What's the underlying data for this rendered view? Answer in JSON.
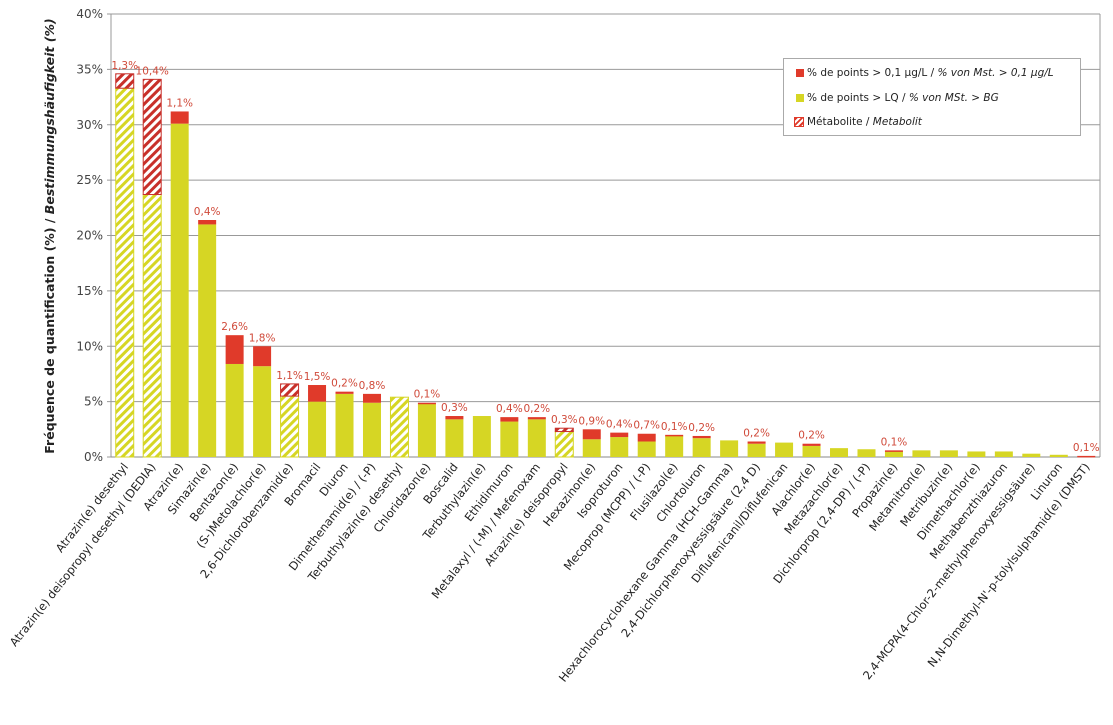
{
  "colors": {
    "red": "#e03a2a",
    "yellow": "#d6d624",
    "label": "#d04a3a"
  },
  "legend": {
    "red_fr": "% de points > 0,1 µg/L / ",
    "red_de": "% von Mst. > 0,1 µg/L",
    "yellow_fr": "% de points > LQ / ",
    "yellow_de": "% von MSt. > BG",
    "metabolite_fr": "Métabolite / ",
    "metabolite_de": "Metabolit"
  },
  "chart_data": {
    "type": "bar",
    "stacked": true,
    "ylabel_fr": "Fréquence de quantification (%) / ",
    "ylabel_de": "Bestimmungshäufigkeit (%)",
    "ylim": [
      0,
      40
    ],
    "yticks": [
      "0%",
      "5%",
      "10%",
      "15%",
      "20%",
      "25%",
      "30%",
      "35%",
      "40%"
    ],
    "grid": true,
    "legend_position": "top-right",
    "categories": [
      "Atrazin(e) desethyl",
      "Atrazin(e) deisopropyl desethyl (DEDIA)",
      "Atrazin(e)",
      "Simazin(e)",
      "Bentazon(e)",
      "(S-)Metolachlor(e)",
      "2,6-Dichlorobenzamid(e)",
      "Bromacil",
      "Diuron",
      "Dimethenamid(e) / (-P)",
      "Terbuthylazin(e) desethyl",
      "Chloridazon(e)",
      "Boscalid",
      "Terbuthylazin(e)",
      "Ethidimuron",
      "Metalaxyl / (-M) / Mefenoxam",
      "Atrazin(e) deisopropyl",
      "Hexazinon(e)",
      "Isoproturon",
      "Mecoprop (MCPP) / (-P)",
      "Flusilazol(e)",
      "Chlortoluron",
      "Hexachlorocyclohexane Gamma (HCH-Gamma)",
      "2,4-Dichlorphenoxyessigsäure (2,4 D)",
      "Diflufenicanil/Diflufenican",
      "Alachlor(e)",
      "Metazachlor(e)",
      "Dichlorprop (2,4-DP) / (-P)",
      "Propazin(e)",
      "Metamitron(e)",
      "Metribuzin(e)",
      "Dimethachlor(e)",
      "Methabenzthiazuron",
      "2,4-MCPA(4-Chlor-2-methylphenoxyessigsäure)",
      "Linuron",
      "N,N-Dimethyl-N'-p-tolylsulphamid(e) (DMST)"
    ],
    "metabolite": [
      true,
      true,
      false,
      false,
      false,
      false,
      true,
      false,
      false,
      false,
      true,
      false,
      false,
      false,
      false,
      false,
      true,
      false,
      false,
      false,
      false,
      false,
      false,
      false,
      false,
      false,
      false,
      false,
      false,
      false,
      false,
      false,
      false,
      false,
      false,
      false
    ],
    "series": [
      {
        "name": "% de points > LQ",
        "values": [
          33.3,
          23.7,
          30.1,
          21.0,
          8.4,
          8.2,
          5.5,
          5.0,
          5.7,
          4.9,
          5.4,
          4.8,
          3.4,
          3.7,
          3.2,
          3.4,
          2.3,
          1.6,
          1.8,
          1.4,
          1.9,
          1.7,
          1.5,
          1.2,
          1.3,
          1.0,
          0.8,
          0.7,
          0.5,
          0.6,
          0.6,
          0.5,
          0.5,
          0.3,
          0.2,
          0.0
        ]
      },
      {
        "name": "% de points > 0,1 µg/L",
        "values": [
          1.3,
          10.4,
          1.1,
          0.4,
          2.6,
          1.8,
          1.1,
          1.5,
          0.2,
          0.8,
          0,
          0.1,
          0.3,
          0,
          0.4,
          0.2,
          0.3,
          0.9,
          0.4,
          0.7,
          0.1,
          0.2,
          0,
          0.2,
          0,
          0.2,
          0,
          0,
          0.1,
          0,
          0,
          0,
          0,
          0,
          0,
          0.1
        ]
      }
    ],
    "data_labels": [
      "1,3%",
      "10,4%",
      "1,1%",
      "0,4%",
      "2,6%",
      "1,8%",
      "1,1%",
      "1,5%",
      "0,2%",
      "0,8%",
      "",
      "0,1%",
      "0,3%",
      "",
      "0,4%",
      "0,2%",
      "0,3%",
      "0,9%",
      "0,4%",
      "0,7%",
      "0,1%",
      "0,2%",
      "",
      "0,2%",
      "",
      "0,2%",
      "",
      "",
      "0,1%",
      "",
      "",
      "",
      "",
      "",
      "",
      "0,1%"
    ]
  }
}
